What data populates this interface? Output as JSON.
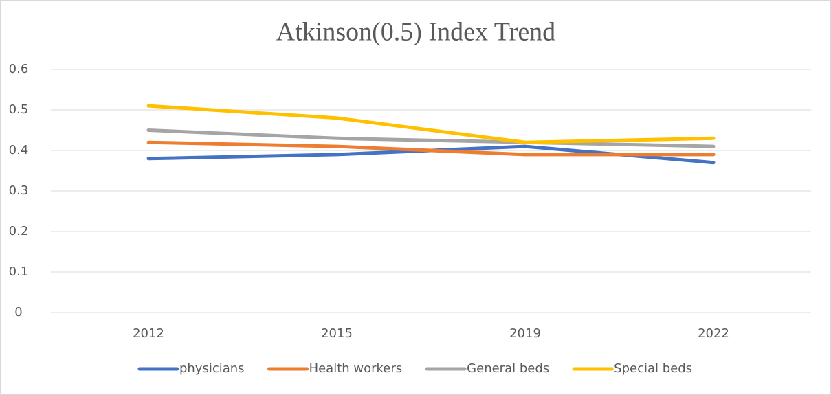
{
  "chart_data": {
    "type": "line",
    "title": "Atkinson(0.5) Index Trend",
    "categories": [
      "2012",
      "2015",
      "2019",
      "2022"
    ],
    "series": [
      {
        "name": "physicians",
        "color": "#4472c4",
        "values": [
          0.38,
          0.39,
          0.41,
          0.37
        ]
      },
      {
        "name": "Health workers",
        "color": "#ed7d31",
        "values": [
          0.42,
          0.41,
          0.39,
          0.39
        ]
      },
      {
        "name": "General beds",
        "color": "#a5a5a5",
        "values": [
          0.45,
          0.43,
          0.42,
          0.41
        ]
      },
      {
        "name": "Special beds",
        "color": "#ffc000",
        "values": [
          0.51,
          0.48,
          0.42,
          0.43
        ]
      }
    ],
    "ylim": [
      0,
      0.6
    ],
    "yticks": [
      0,
      0.1,
      0.2,
      0.3,
      0.4,
      0.5,
      0.6
    ],
    "grid": true,
    "legend": "bottom"
  }
}
